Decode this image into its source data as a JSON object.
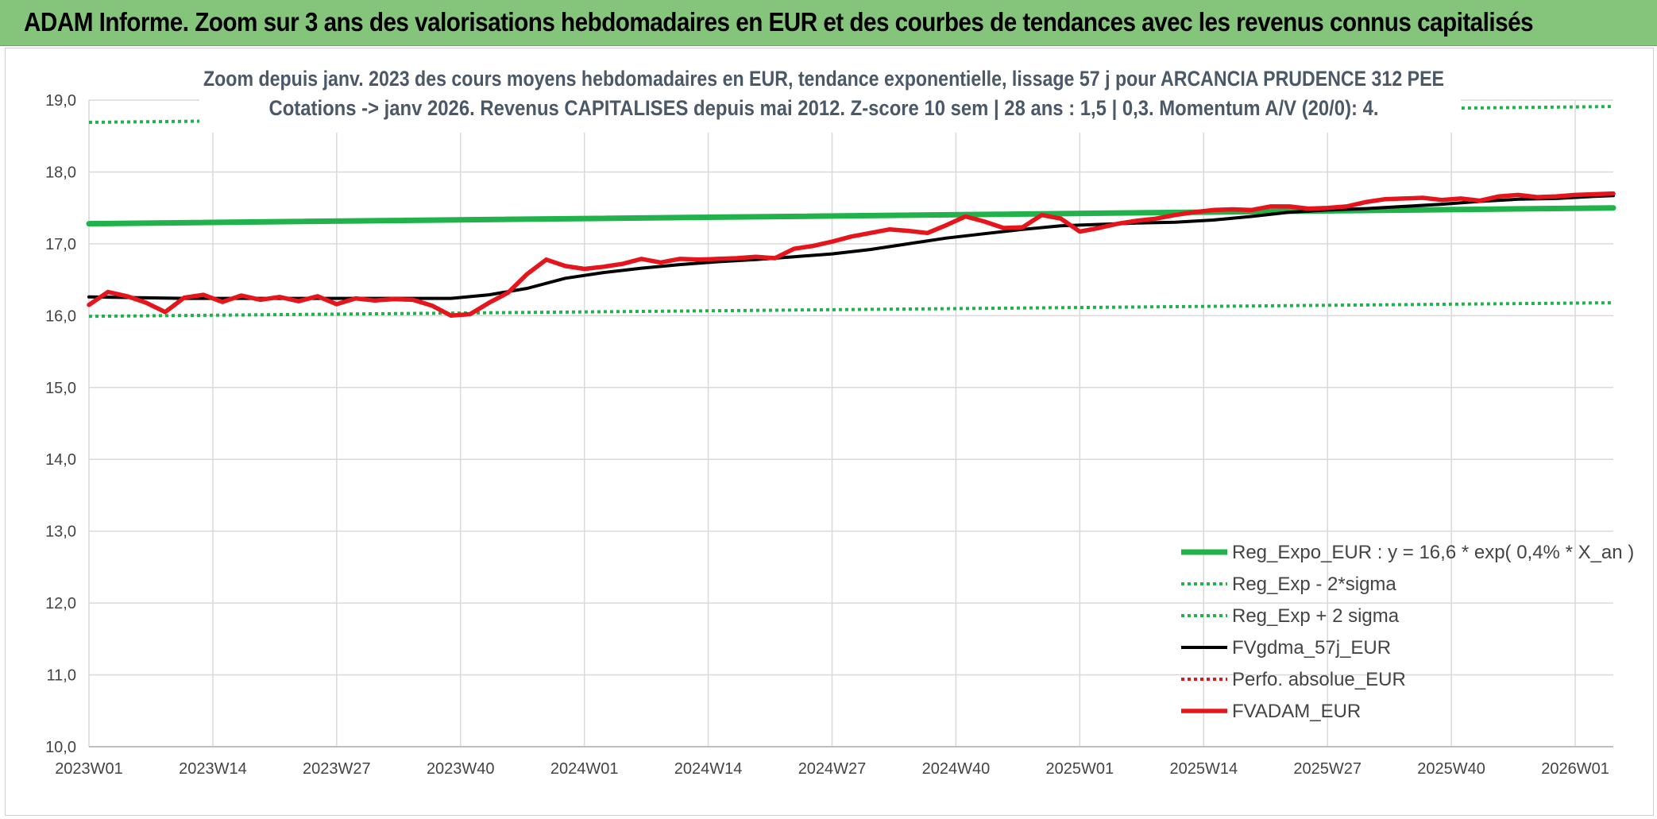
{
  "header": {
    "title": "ADAM Informe. Zoom sur 3 ans des valorisations hebdomadaires en EUR et des courbes de tendances avec les revenus connus capitalisés"
  },
  "colors": {
    "header_bg": "#84c57b",
    "green": "#22b24c",
    "black": "#000000",
    "red": "#e6141b"
  },
  "chart_data": {
    "type": "line",
    "title_line1": "Zoom depuis janv. 2023 des cours moyens hebdomadaires en EUR, tendance exponentielle, lissage 57 j pour ARCANCIA PRUDENCE 312 PEE",
    "title_line2": "Cotations -> janv 2026. Revenus CAPITALISES depuis mai 2012. Z-score 10 sem | 28 ans : 1,5 | 0,3. Momentum A/V (20/0): 4.",
    "xlabel": "",
    "ylabel": "",
    "ylim": [
      10,
      19
    ],
    "ytick_values": [
      10,
      11,
      12,
      13,
      14,
      15,
      16,
      17,
      18,
      19
    ],
    "ytick_labels": [
      "10,0",
      "11,0",
      "12,0",
      "13,0",
      "14,0",
      "15,0",
      "16,0",
      "17,0",
      "18,0",
      "19,0"
    ],
    "xlim": [
      0,
      160
    ],
    "xtick_positions": [
      0,
      13,
      26,
      39,
      52,
      65,
      78,
      91,
      104,
      117,
      130,
      143,
      156
    ],
    "xtick_labels": [
      "2023W01",
      "2023W14",
      "2023W27",
      "2023W40",
      "2024W01",
      "2024W14",
      "2024W27",
      "2024W40",
      "2025W01",
      "2025W14",
      "2025W27",
      "2025W40",
      "2026W01"
    ],
    "series": [
      {
        "name": "Reg_Expo_EUR : y = 16,6 * exp( 0,4% *  X_an )",
        "style": "solid-thick",
        "color": "#22b24c",
        "x": [
          0,
          160
        ],
        "y": [
          17.28,
          17.5
        ]
      },
      {
        "name": "Reg_Exp - 2*sigma",
        "style": "dotted",
        "color": "#22b24c",
        "x": [
          0,
          160
        ],
        "y": [
          15.99,
          16.18
        ]
      },
      {
        "name": "Reg_Exp + 2 sigma",
        "style": "dotted",
        "color": "#22b24c",
        "x": [
          0,
          160
        ],
        "y": [
          18.69,
          18.91
        ]
      },
      {
        "name": "FVgdma_57j_EUR",
        "style": "solid",
        "color": "#000000",
        "x": [
          0,
          10,
          20,
          30,
          38,
          42,
          46,
          50,
          54,
          58,
          62,
          66,
          70,
          74,
          78,
          82,
          86,
          90,
          94,
          98,
          102,
          106,
          110,
          114,
          118,
          122,
          126,
          130,
          134,
          138,
          142,
          146,
          150,
          154,
          158,
          160
        ],
        "y": [
          16.26,
          16.24,
          16.24,
          16.24,
          16.24,
          16.29,
          16.38,
          16.52,
          16.6,
          16.66,
          16.71,
          16.75,
          16.78,
          16.82,
          16.86,
          16.92,
          17.0,
          17.08,
          17.14,
          17.2,
          17.25,
          17.27,
          17.29,
          17.3,
          17.33,
          17.38,
          17.44,
          17.47,
          17.49,
          17.52,
          17.55,
          17.59,
          17.62,
          17.63,
          17.66,
          17.67
        ]
      },
      {
        "name": "Perfo. absolue_EUR",
        "style": "dotted",
        "color": "#e6141b",
        "x": [],
        "y": []
      },
      {
        "name": "FVADAM_EUR",
        "style": "solid-thick",
        "color": "#e6141b",
        "x": [
          0,
          2,
          4,
          6,
          8,
          10,
          12,
          14,
          16,
          18,
          20,
          22,
          24,
          26,
          28,
          30,
          32,
          34,
          36,
          38,
          40,
          42,
          44,
          46,
          48,
          50,
          52,
          54,
          56,
          58,
          60,
          62,
          64,
          66,
          68,
          70,
          72,
          74,
          76,
          78,
          80,
          82,
          84,
          86,
          88,
          90,
          92,
          94,
          96,
          98,
          100,
          102,
          104,
          106,
          108,
          110,
          112,
          114,
          116,
          118,
          120,
          122,
          124,
          126,
          128,
          130,
          132,
          134,
          136,
          138,
          140,
          142,
          144,
          146,
          148,
          150,
          152,
          154,
          156,
          158,
          160
        ],
        "y": [
          16.15,
          16.33,
          16.27,
          16.18,
          16.05,
          16.25,
          16.29,
          16.19,
          16.28,
          16.22,
          16.26,
          16.2,
          16.27,
          16.16,
          16.24,
          16.21,
          16.23,
          16.22,
          16.14,
          16.0,
          16.02,
          16.18,
          16.32,
          16.58,
          16.78,
          16.69,
          16.65,
          16.68,
          16.72,
          16.79,
          16.74,
          16.79,
          16.78,
          16.79,
          16.8,
          16.82,
          16.8,
          16.93,
          16.97,
          17.03,
          17.1,
          17.15,
          17.2,
          17.18,
          17.15,
          17.26,
          17.38,
          17.31,
          17.22,
          17.23,
          17.4,
          17.35,
          17.17,
          17.22,
          17.28,
          17.32,
          17.35,
          17.4,
          17.44,
          17.47,
          17.48,
          17.47,
          17.52,
          17.52,
          17.49,
          17.5,
          17.52,
          17.58,
          17.62,
          17.63,
          17.64,
          17.61,
          17.63,
          17.6,
          17.66,
          17.68,
          17.65,
          17.66,
          17.68,
          17.69,
          17.7
        ]
      }
    ],
    "legend_position": "bottom-right"
  }
}
